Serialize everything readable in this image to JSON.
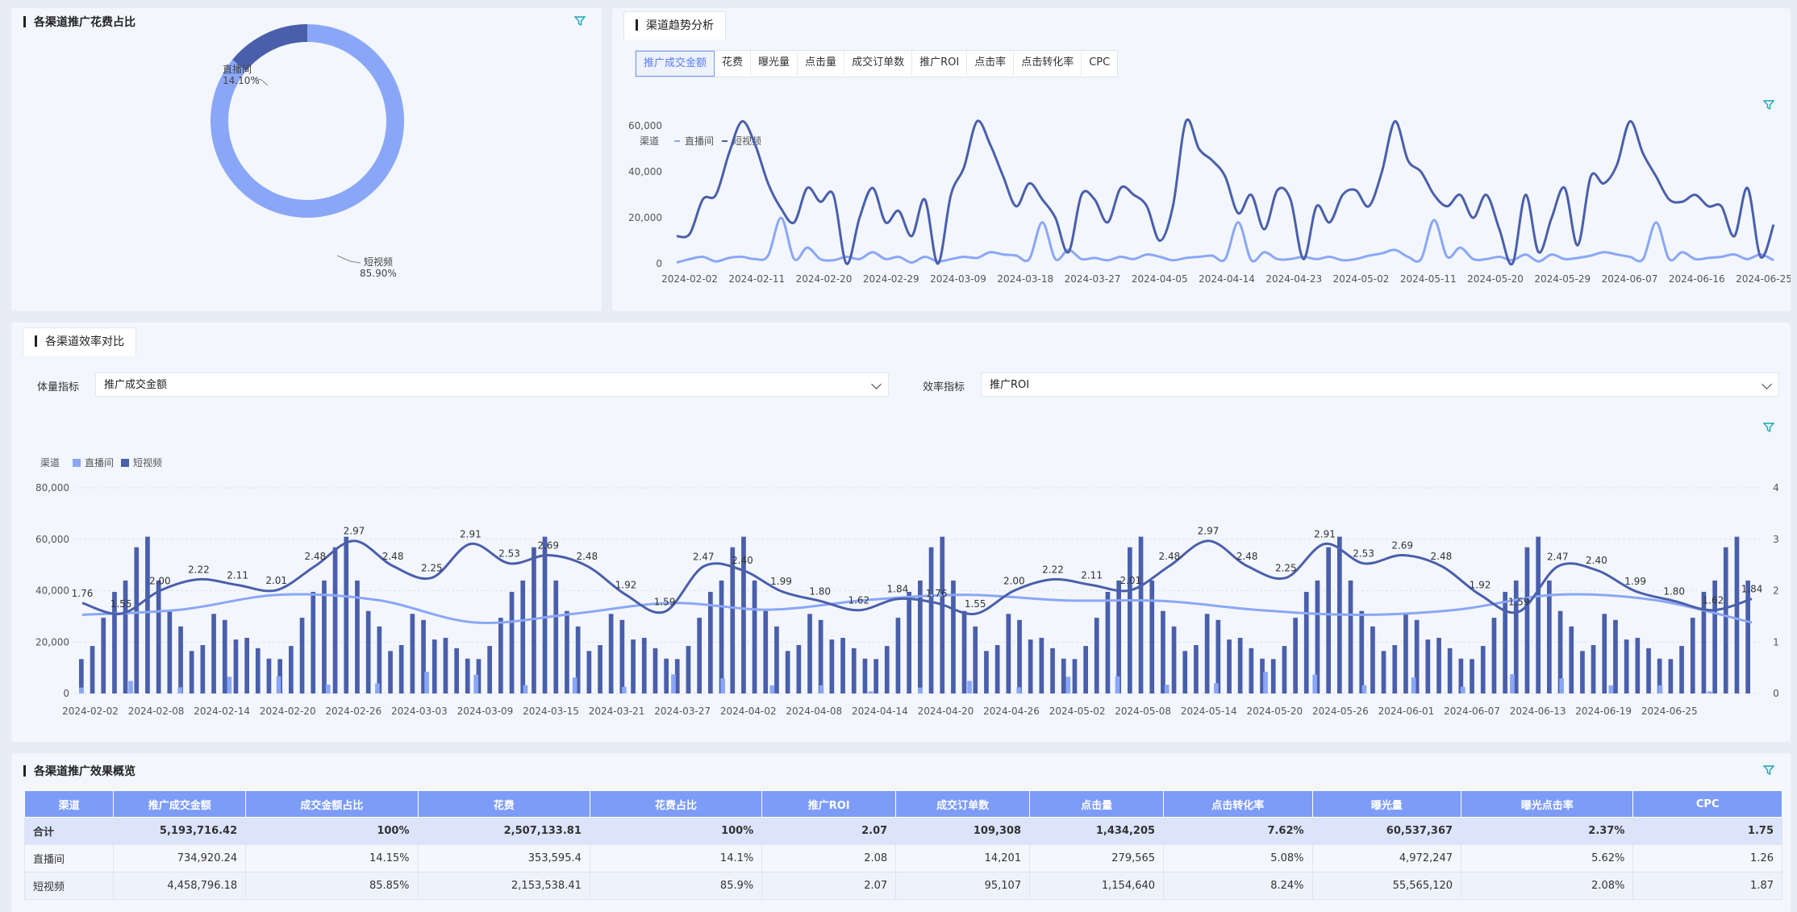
{
  "colors": {
    "live": "#8aa7f7",
    "short": "#4a5fab",
    "active_tab": "#5b7cf0"
  },
  "pie": {
    "title": "各渠道推广花费占比",
    "live_label": "直播间",
    "live_pct": "14.10%",
    "short_label": "短视频",
    "short_pct": "85.90%",
    "chart_data": {
      "type": "pie",
      "categories": [
        "直播间",
        "短视频"
      ],
      "values": [
        14.1,
        85.9
      ]
    }
  },
  "trend": {
    "title": "渠道趋势分析",
    "tabs": [
      "推广成交金额",
      "花费",
      "曝光量",
      "点击量",
      "成交订单数",
      "推广ROI",
      "点击率",
      "点击转化率",
      "CPC"
    ],
    "legend_title": "渠道",
    "legend": [
      "直播间",
      "短视频"
    ],
    "yticks": [
      "60,000",
      "40,000",
      "20,000",
      "0"
    ],
    "xticks": [
      "2024-02-02",
      "2024-02-11",
      "2024-02-20",
      "2024-02-29",
      "2024-03-09",
      "2024-03-18",
      "2024-03-27",
      "2024-04-05",
      "2024-04-14",
      "2024-04-23",
      "2024-05-02",
      "2024-05-11",
      "2024-05-20",
      "2024-05-29",
      "2024-06-07",
      "2024-06-16",
      "2024-06-25"
    ],
    "chart_data": {
      "type": "line",
      "xlabel": "",
      "ylabel": "",
      "ylim": [
        0,
        65000
      ],
      "series": [
        {
          "name": "短视频",
          "values": [
            12000,
            13000,
            28000,
            30000,
            48000,
            62000,
            52000,
            35000,
            24000,
            18000,
            33000,
            27000,
            30000,
            0,
            20000,
            33000,
            18000,
            23000,
            12000,
            28000,
            0,
            30000,
            42000,
            62000,
            52000,
            38000,
            25000,
            35000,
            28000,
            20000,
            5000,
            30000,
            28000,
            18000,
            33000,
            30000,
            25000,
            10000,
            25000,
            62000,
            50000,
            45000,
            38000,
            22000,
            30000,
            15000,
            32000,
            28000,
            2000,
            25000,
            18000,
            30000,
            32000,
            25000,
            40000,
            62000,
            45000,
            40000,
            30000,
            25000,
            30000,
            20000,
            30000,
            15000,
            0,
            30000,
            5000,
            20000,
            33000,
            8000,
            38000,
            35000,
            43000,
            62000,
            48000,
            38000,
            28000,
            27000,
            30000,
            25000,
            25000,
            12000,
            33000,
            3000,
            17000
          ]
        },
        {
          "name": "直播间",
          "values": [
            500,
            2000,
            3000,
            1000,
            2500,
            3000,
            2000,
            3500,
            20000,
            2000,
            7000,
            2000,
            1500,
            3000,
            2000,
            5000,
            2000,
            3000,
            500,
            3000,
            1000,
            2000,
            3000,
            2500,
            5000,
            4000,
            3500,
            2000,
            18000,
            2000,
            6000,
            2000,
            2500,
            1500,
            3000,
            2000,
            4000,
            3000,
            1500,
            2500,
            3000,
            3500,
            2000,
            18000,
            1500,
            5000,
            2000,
            2000,
            3000,
            2000,
            3000,
            1500,
            2000,
            3500,
            4500,
            6000,
            3000,
            2000,
            19000,
            3000,
            7000,
            2000,
            2000,
            3000,
            1500,
            4000,
            1000,
            4000,
            2000,
            2500,
            3500,
            5000,
            4000,
            3000,
            2000,
            18000,
            2000,
            5000,
            2000,
            2500,
            3000,
            4000,
            2000,
            4000,
            1500
          ]
        }
      ]
    }
  },
  "eff": {
    "title": "各渠道效率对比",
    "vol_label": "体量指标",
    "vol_value": "推广成交金额",
    "effi_label": "效率指标",
    "effi_value": "推广ROI",
    "legend_title": "渠道",
    "legend": [
      "直播间",
      "短视频"
    ],
    "yticks_left": [
      "80,000",
      "60,000",
      "40,000",
      "20,000",
      "0"
    ],
    "yticks_right": [
      "4",
      "3",
      "2",
      "1",
      "0"
    ],
    "xticks": [
      "2024-02-02",
      "2024-02-08",
      "2024-02-14",
      "2024-02-20",
      "2024-02-26",
      "2024-03-03",
      "2024-03-09",
      "2024-03-15",
      "2024-03-21",
      "2024-03-27",
      "2024-04-02",
      "2024-04-08",
      "2024-04-14",
      "2024-04-20",
      "2024-04-26",
      "2024-05-02",
      "2024-05-08",
      "2024-05-14",
      "2024-05-20",
      "2024-05-26",
      "2024-06-01",
      "2024-06-07",
      "2024-06-13",
      "2024-06-19",
      "2024-06-25"
    ],
    "chart_data": {
      "type": "bar",
      "xlabel": "",
      "ylabel": "",
      "ylim": [
        0,
        80000
      ],
      "y2lim": [
        0,
        4
      ],
      "series": [
        {
          "name": "短视频",
          "values": [
            13390.7,
            18485,
            29451.31,
            39517.6,
            43941.82,
            56864.4,
            61000,
            43941.82,
            32086.79,
            26078.41,
            16520.83,
            18818.21,
            30970.7,
            28615.4,
            20992.39,
            21652.6,
            17642.9,
            13553.76,
            13390.7,
            18485,
            29451.31,
            39517.6,
            43941.82,
            56864.4,
            61000,
            43941.82,
            32086.79,
            26078.41,
            16520.83,
            18818.21,
            30970.7,
            28615.4,
            20992.39,
            21652.6,
            17642.9,
            13553.76,
            13390.7,
            18485,
            29451.31,
            39517.6,
            43941.82,
            56864.4,
            61000,
            43941.82,
            32086.79,
            26078.41,
            16520.83,
            18818.21,
            30970.7,
            28615.4,
            20992.39,
            21652.6,
            17642.9,
            13553.76,
            13390.7,
            18485,
            29451.31,
            39517.6,
            43941.82,
            56864.4,
            61000,
            43941.82,
            32086.79,
            26078.41,
            16520.83,
            18818.21,
            30970.7,
            28615.4,
            20992.39,
            21652.6,
            17642.9,
            13553.76,
            13390.7,
            18485,
            29451.31,
            39517.6,
            43941.82,
            56864.4,
            61000,
            43941.82,
            32086.79,
            26078.41,
            16520.83,
            18818.21,
            30970.7,
            28615.4,
            20992.39,
            21652.6,
            17642.9,
            13553.76,
            13390.7,
            18485,
            29451.31,
            39517.6,
            43941.82,
            56864.4,
            61000,
            43941.82,
            32086.79,
            26078.41,
            16520.83,
            18818.21,
            30970.7,
            28615.4,
            20992.39,
            21652.6,
            17642.9,
            13553.76,
            13390.7,
            18485,
            29451.31,
            39517.6,
            43941.82,
            56864.4,
            61000,
            43941.82,
            32086.79,
            26078.41,
            16520.83,
            18818.21,
            30970.7,
            28615.4,
            20992.39,
            21652.6,
            17642.9,
            13553.76,
            13390.7,
            18485,
            29451.31,
            39517.6,
            43941.82,
            56864.4,
            61000,
            43941.82,
            32086.79,
            26078.41,
            16520.83,
            18818.21,
            30970.7,
            28615.4,
            20992.39,
            21652.6,
            17642.9,
            13553.76,
            13390.7,
            18485,
            29451.31,
            39517.6,
            43941.82,
            56864.4,
            61000,
            43941.82
          ]
        },
        {
          "name": "直播间",
          "values": [
            2295.11,
            4896.91,
            2422.48,
            6535.58,
            6691.94,
            3422.21,
            3940.37,
            8404.12,
            7302.2,
            3239.48,
            6222.59,
            2573.7,
            7459.63,
            5876.62,
            3132.59,
            3213,
            818.28,
            2295.11,
            4896.91,
            2422.48,
            6535.58,
            6691.94,
            3422.21,
            3940.37,
            8404.12,
            7302.2,
            3239.48,
            6222.59,
            2573.7,
            7459.63,
            5876.62,
            3132.59,
            3213,
            818.28
          ]
        }
      ],
      "line_series": [
        {
          "name": "短视频 推广ROI",
          "values": [
            1.76,
            1.55,
            2.0,
            2.22,
            2.11,
            2.01,
            2.48,
            2.97,
            2.48,
            2.25,
            2.91,
            2.53,
            2.69,
            2.48,
            1.92,
            1.59,
            2.47,
            2.4,
            1.99,
            1.8,
            1.62,
            1.84,
            1.76,
            1.55,
            2.0,
            2.22,
            2.11,
            2.01,
            2.48,
            2.97,
            2.48,
            2.25,
            2.91,
            2.53,
            2.69,
            2.48,
            1.92,
            1.59,
            2.47,
            2.4,
            1.99,
            1.8,
            1.62,
            1.84
          ]
        },
        {
          "name": "直播间 推广ROI",
          "values": [
            1.53,
            1.63,
            1.92,
            1.82,
            1.38,
            1.55,
            1.76,
            1.63,
            1.82,
            1.92,
            1.81,
            1.8,
            1.62,
            1.53,
            1.63,
            1.92,
            1.82,
            1.38
          ]
        }
      ]
    }
  },
  "table": {
    "title": "各渠道推广效果概览",
    "headers": [
      "渠道",
      "推广成交金额",
      "成交金额占比",
      "花费",
      "花费占比",
      "推广ROI",
      "成交订单数",
      "点击量",
      "点击转化率",
      "曝光量",
      "曝光点击率",
      "CPC"
    ],
    "rows": [
      [
        "合计",
        "5,193,716.42",
        "100%",
        "2,507,133.81",
        "100%",
        "2.07",
        "109,308",
        "1,434,205",
        "7.62%",
        "60,537,367",
        "2.37%",
        "1.75"
      ],
      [
        "直播间",
        "734,920.24",
        "14.15%",
        "353,595.4",
        "14.1%",
        "2.08",
        "14,201",
        "279,565",
        "5.08%",
        "4,972,247",
        "5.62%",
        "1.26"
      ],
      [
        "短视频",
        "4,458,796.18",
        "85.85%",
        "2,153,538.41",
        "85.9%",
        "2.07",
        "95,107",
        "1,154,640",
        "8.24%",
        "55,565,120",
        "2.08%",
        "1.87"
      ]
    ]
  }
}
